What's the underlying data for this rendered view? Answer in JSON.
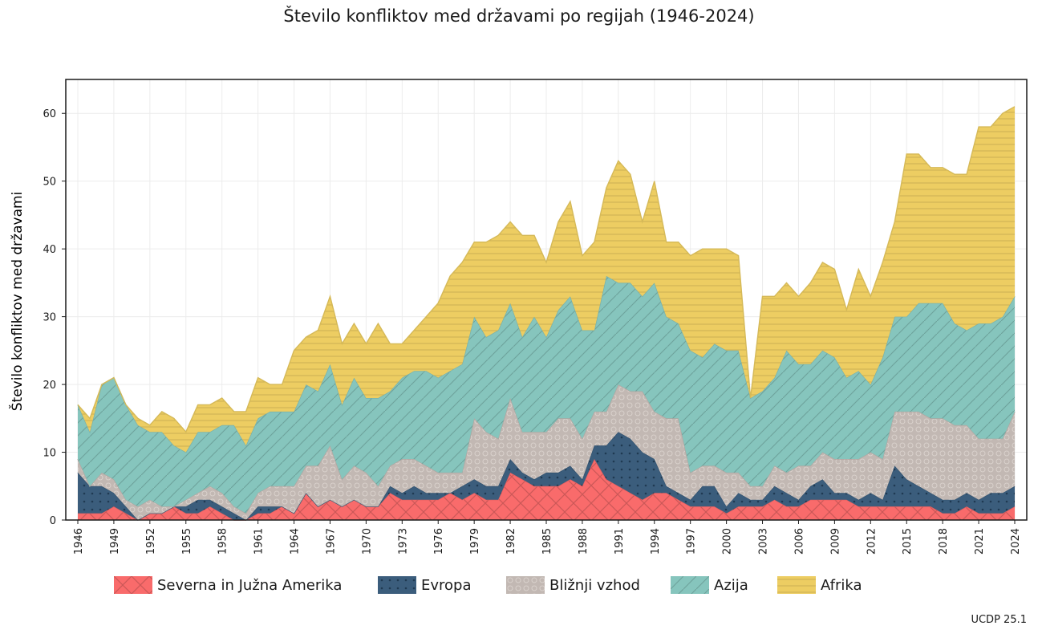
{
  "title": "Število konfliktov med državami po regijah (1946-2024)",
  "source": "UCDP 25.1",
  "chart_data": {
    "type": "area",
    "stacked": true,
    "title": "Število konfliktov med državami po regijah (1946-2024)",
    "xlabel": "",
    "ylabel": "Število konfliktov med državami",
    "x_range": [
      1946,
      2024
    ],
    "ylim": [
      0,
      65
    ],
    "y_ticks": [
      0,
      10,
      20,
      30,
      40,
      50,
      60
    ],
    "x_ticks": [
      1946,
      1949,
      1952,
      1955,
      1958,
      1961,
      1964,
      1967,
      1970,
      1973,
      1976,
      1979,
      1982,
      1985,
      1988,
      1991,
      1994,
      1997,
      2000,
      2003,
      2006,
      2009,
      2012,
      2015,
      2018,
      2021,
      2024
    ],
    "grid": true,
    "legend_position": "bottom",
    "x": [
      1946,
      1947,
      1948,
      1949,
      1950,
      1951,
      1952,
      1953,
      1954,
      1955,
      1956,
      1957,
      1958,
      1959,
      1960,
      1961,
      1962,
      1963,
      1964,
      1965,
      1966,
      1967,
      1968,
      1969,
      1970,
      1971,
      1972,
      1973,
      1974,
      1975,
      1976,
      1977,
      1978,
      1979,
      1980,
      1981,
      1982,
      1983,
      1984,
      1985,
      1986,
      1987,
      1988,
      1989,
      1990,
      1991,
      1992,
      1993,
      1994,
      1995,
      1996,
      1997,
      1998,
      1999,
      2000,
      2001,
      2002,
      2003,
      2004,
      2005,
      2006,
      2007,
      2008,
      2009,
      2010,
      2011,
      2012,
      2013,
      2014,
      2015,
      2016,
      2017,
      2018,
      2019,
      2020,
      2021,
      2022,
      2023,
      2024
    ],
    "series": [
      {
        "name": "Severna in Južna Amerika",
        "color": "#f96b6b",
        "pattern": "cross",
        "values": [
          1,
          1,
          1,
          2,
          1,
          0,
          1,
          1,
          2,
          1,
          1,
          2,
          1,
          0,
          0,
          1,
          1,
          2,
          1,
          4,
          2,
          3,
          2,
          3,
          2,
          2,
          4,
          3,
          3,
          3,
          3,
          4,
          3,
          4,
          3,
          3,
          7,
          6,
          5,
          5,
          5,
          6,
          5,
          9,
          6,
          5,
          4,
          3,
          4,
          4,
          3,
          2,
          2,
          2,
          1,
          2,
          2,
          2,
          3,
          2,
          2,
          3,
          3,
          3,
          3,
          2,
          2,
          2,
          2,
          2,
          2,
          2,
          1,
          1,
          2,
          1,
          1,
          1,
          2
        ]
      },
      {
        "name": "Evropa",
        "color": "#3b5d7c",
        "pattern": "dots",
        "values": [
          6,
          4,
          4,
          2,
          1,
          0,
          0,
          0,
          0,
          1,
          2,
          1,
          1,
          1,
          0,
          1,
          1,
          0,
          0,
          0,
          0,
          0,
          0,
          0,
          0,
          0,
          1,
          1,
          2,
          1,
          1,
          0,
          2,
          2,
          2,
          2,
          2,
          1,
          1,
          2,
          2,
          2,
          1,
          2,
          5,
          8,
          8,
          7,
          5,
          1,
          1,
          1,
          3,
          3,
          1,
          2,
          1,
          1,
          2,
          2,
          1,
          2,
          3,
          1,
          1,
          1,
          2,
          1,
          6,
          4,
          3,
          2,
          2,
          2,
          2,
          2,
          3,
          3,
          3
        ]
      },
      {
        "name": "Bližnji vzhod",
        "color": "#c2b8b3",
        "pattern": "circles",
        "values": [
          2,
          0,
          2,
          2,
          1,
          2,
          2,
          1,
          0,
          1,
          1,
          2,
          2,
          1,
          1,
          2,
          3,
          3,
          4,
          4,
          6,
          8,
          4,
          5,
          5,
          3,
          3,
          5,
          4,
          4,
          3,
          3,
          2,
          9,
          8,
          7,
          9,
          6,
          7,
          6,
          8,
          7,
          6,
          5,
          5,
          7,
          7,
          9,
          7,
          10,
          11,
          4,
          3,
          3,
          5,
          3,
          2,
          2,
          3,
          3,
          5,
          3,
          4,
          5,
          5,
          6,
          6,
          6,
          8,
          10,
          11,
          11,
          12,
          11,
          10,
          9,
          8,
          8,
          11
        ]
      },
      {
        "name": "Azija",
        "color": "#86c5bd",
        "pattern": "diagonal",
        "values": [
          8,
          8,
          13,
          15,
          14,
          12,
          10,
          11,
          9,
          7,
          9,
          8,
          10,
          12,
          10,
          11,
          11,
          11,
          11,
          12,
          11,
          12,
          11,
          13,
          11,
          13,
          11,
          12,
          13,
          14,
          14,
          15,
          16,
          15,
          14,
          16,
          14,
          14,
          17,
          14,
          16,
          18,
          16,
          12,
          20,
          15,
          16,
          14,
          19,
          15,
          14,
          18,
          16,
          18,
          18,
          18,
          13,
          14,
          13,
          18,
          15,
          15,
          15,
          15,
          12,
          13,
          10,
          15,
          14,
          14,
          16,
          17,
          17,
          15,
          14,
          17,
          17,
          18,
          17
        ]
      },
      {
        "name": "Afrika",
        "color": "#edcd62",
        "pattern": "horizontal",
        "values": [
          0,
          2,
          0,
          0,
          0,
          1,
          1,
          3,
          4,
          3,
          4,
          4,
          4,
          2,
          5,
          6,
          4,
          4,
          9,
          7,
          9,
          10,
          9,
          8,
          8,
          11,
          7,
          5,
          6,
          8,
          11,
          14,
          15,
          11,
          14,
          14,
          12,
          15,
          12,
          11,
          13,
          14,
          11,
          13,
          13,
          18,
          16,
          11,
          15,
          11,
          12,
          14,
          16,
          14,
          15,
          14,
          0,
          14,
          12,
          10,
          10,
          12,
          13,
          13,
          10,
          15,
          13,
          14,
          14,
          24,
          22,
          20,
          20,
          22,
          23,
          29,
          29,
          30,
          28
        ]
      }
    ]
  }
}
